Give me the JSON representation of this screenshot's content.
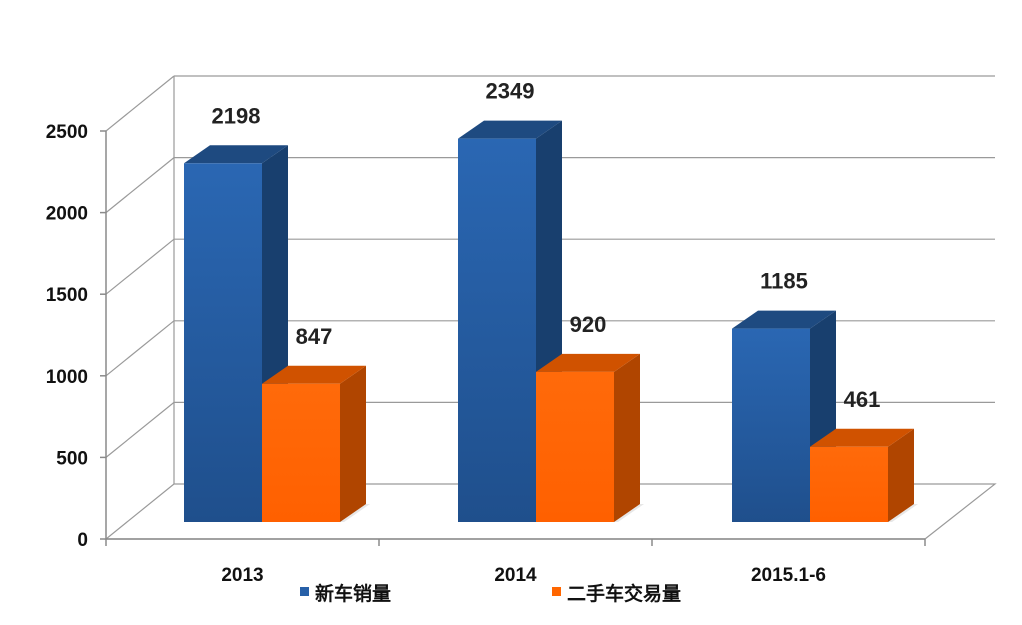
{
  "chart_data": {
    "type": "bar",
    "style": "3d-clustered-column",
    "categories": [
      "2013",
      "2014",
      "2015.1-6"
    ],
    "series": [
      {
        "name": "新车销量",
        "values": [
          2198,
          2349,
          1185
        ],
        "color": "#2760A8"
      },
      {
        "name": "二手车交易量",
        "values": [
          847,
          920,
          461
        ],
        "color": "#FF6600"
      }
    ],
    "yticks": [
      "0",
      "500",
      "1000",
      "1500",
      "2000",
      "2500"
    ],
    "ylim": [
      0,
      2500
    ],
    "grid": true,
    "legend_position": "bottom",
    "data_labels": true
  }
}
